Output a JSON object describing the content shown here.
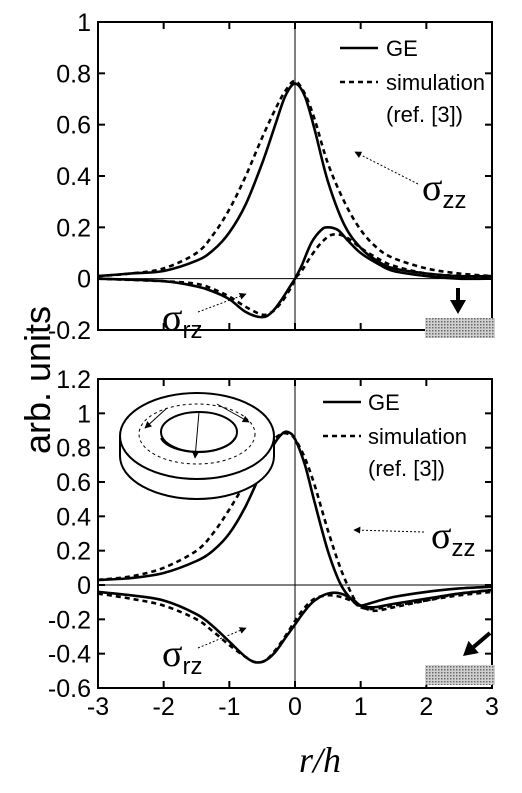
{
  "chart_data": [
    {
      "type": "line",
      "xlabel": "r/h",
      "ylabel": "arb.  units",
      "xlim": [
        -3,
        3
      ],
      "ylim": [
        -0.2,
        1
      ],
      "xticks": [
        "-3",
        "-2",
        "-1",
        "0",
        "1",
        "2",
        "3"
      ],
      "yticks": [
        "-0.2",
        "0",
        "0.2",
        "0.4",
        "0.6",
        "0.8",
        "1"
      ],
      "legend": {
        "placement": "top-right",
        "entries": [
          "GE",
          "simulation",
          "(ref. [3])"
        ]
      },
      "labels": {
        "szz": "σ",
        "szz_sub": "zz",
        "srz": "σ",
        "srz_sub": "rz"
      },
      "series": [
        {
          "name": "GE",
          "component": "zz",
          "style": "solid",
          "x": [
            -3,
            -2.5,
            -2,
            -1.5,
            -1.25,
            -1,
            -0.75,
            -0.5,
            -0.3,
            -0.15,
            0,
            0.15,
            0.3,
            0.5,
            0.75,
            1,
            1.25,
            1.5,
            2,
            2.5,
            3
          ],
          "y": [
            0.01,
            0.02,
            0.03,
            0.07,
            0.11,
            0.18,
            0.29,
            0.45,
            0.6,
            0.71,
            0.76,
            0.71,
            0.58,
            0.38,
            0.21,
            0.12,
            0.07,
            0.04,
            0.02,
            0.01,
            0.01
          ]
        },
        {
          "name": "simulation",
          "component": "zz",
          "style": "dashed",
          "x": [
            -3,
            -2.5,
            -2,
            -1.5,
            -1.25,
            -1,
            -0.75,
            -0.5,
            -0.3,
            -0.15,
            0,
            0.15,
            0.3,
            0.5,
            0.75,
            1,
            1.25,
            1.5,
            2,
            2.5,
            3
          ],
          "y": [
            0.01,
            0.02,
            0.04,
            0.1,
            0.17,
            0.27,
            0.4,
            0.55,
            0.66,
            0.73,
            0.77,
            0.72,
            0.62,
            0.45,
            0.3,
            0.19,
            0.12,
            0.08,
            0.04,
            0.02,
            0.01
          ]
        },
        {
          "name": "GE",
          "component": "rz",
          "style": "solid",
          "x": [
            -3,
            -2,
            -1.5,
            -1.25,
            -1,
            -0.75,
            -0.5,
            -0.35,
            -0.2,
            -0.05,
            0,
            0.1,
            0.25,
            0.4,
            0.5,
            0.65,
            0.8,
            1,
            1.25,
            1.5,
            2,
            2.5,
            3
          ],
          "y": [
            0,
            -0.01,
            -0.03,
            -0.05,
            -0.08,
            -0.13,
            -0.15,
            -0.13,
            -0.08,
            -0.02,
            0,
            0.05,
            0.14,
            0.19,
            0.2,
            0.19,
            0.15,
            0.1,
            0.06,
            0.03,
            0.01,
            0,
            0
          ]
        },
        {
          "name": "simulation",
          "component": "rz",
          "style": "dashed",
          "x": [
            -3,
            -2,
            -1.5,
            -1.25,
            -1,
            -0.75,
            -0.5,
            -0.35,
            -0.2,
            -0.05,
            0,
            0.1,
            0.25,
            0.4,
            0.55,
            0.7,
            0.85,
            1,
            1.25,
            1.5,
            2,
            2.5,
            3
          ],
          "y": [
            0,
            -0.01,
            -0.02,
            -0.04,
            -0.07,
            -0.11,
            -0.14,
            -0.13,
            -0.09,
            -0.03,
            0,
            0.03,
            0.09,
            0.14,
            0.17,
            0.17,
            0.15,
            0.12,
            0.08,
            0.05,
            0.02,
            0.01,
            0
          ]
        }
      ]
    },
    {
      "type": "line",
      "xlabel": "r/h",
      "ylabel": "arb.  units",
      "xlim": [
        -3,
        3
      ],
      "ylim": [
        -0.6,
        1.2
      ],
      "xticks": [
        "-3",
        "-2",
        "-1",
        "0",
        "1",
        "2",
        "3"
      ],
      "yticks": [
        "-0.6",
        "-0.4",
        "-0.2",
        "0",
        "0.2",
        "0.4",
        "0.6",
        "0.8",
        "1",
        "1.2"
      ],
      "legend": {
        "placement": "top-right",
        "entries": [
          "GE",
          "simulation",
          "(ref. [3])"
        ]
      },
      "labels": {
        "szz": "σ",
        "szz_sub": "zz",
        "srz": "σ",
        "srz_sub": "rz"
      },
      "series": [
        {
          "name": "GE",
          "component": "zz",
          "style": "solid",
          "x": [
            -3,
            -2.5,
            -2,
            -1.5,
            -1.25,
            -1,
            -0.75,
            -0.5,
            -0.35,
            -0.2,
            -0.1,
            0,
            0.15,
            0.3,
            0.5,
            0.7,
            0.9,
            1,
            1.2,
            1.5,
            2,
            2.5,
            3
          ],
          "y": [
            0.03,
            0.04,
            0.07,
            0.14,
            0.2,
            0.3,
            0.46,
            0.67,
            0.8,
            0.88,
            0.89,
            0.85,
            0.7,
            0.48,
            0.2,
            0.0,
            -0.1,
            -0.12,
            -0.1,
            -0.07,
            -0.04,
            -0.02,
            -0.01
          ]
        },
        {
          "name": "simulation",
          "component": "zz",
          "style": "dashed",
          "x": [
            -3,
            -2.5,
            -2,
            -1.5,
            -1.25,
            -1,
            -0.75,
            -0.5,
            -0.35,
            -0.2,
            -0.1,
            0,
            0.15,
            0.3,
            0.5,
            0.7,
            0.9,
            1,
            1.2,
            1.5,
            2,
            2.5,
            3
          ],
          "y": [
            0.03,
            0.05,
            0.1,
            0.2,
            0.3,
            0.44,
            0.6,
            0.76,
            0.84,
            0.88,
            0.88,
            0.85,
            0.74,
            0.58,
            0.32,
            0.09,
            -0.08,
            -0.12,
            -0.15,
            -0.13,
            -0.09,
            -0.05,
            -0.03
          ]
        },
        {
          "name": "GE",
          "component": "rz",
          "style": "solid",
          "x": [
            -3,
            -2.5,
            -2,
            -1.5,
            -1.25,
            -1,
            -0.75,
            -0.6,
            -0.45,
            -0.3,
            -0.15,
            0,
            0.15,
            0.3,
            0.5,
            0.7,
            0.9,
            1,
            1.2,
            1.5,
            2,
            2.5,
            3
          ],
          "y": [
            -0.04,
            -0.06,
            -0.09,
            -0.17,
            -0.24,
            -0.33,
            -0.42,
            -0.45,
            -0.44,
            -0.39,
            -0.31,
            -0.23,
            -0.15,
            -0.09,
            -0.05,
            -0.05,
            -0.09,
            -0.12,
            -0.13,
            -0.11,
            -0.08,
            -0.05,
            -0.03
          ]
        },
        {
          "name": "simulation",
          "component": "rz",
          "style": "dashed",
          "x": [
            -3,
            -2.5,
            -2,
            -1.5,
            -1.25,
            -1,
            -0.75,
            -0.6,
            -0.45,
            -0.3,
            -0.15,
            0,
            0.15,
            0.3,
            0.5,
            0.7,
            0.9,
            1,
            1.2,
            1.5,
            2,
            2.5,
            3
          ],
          "y": [
            -0.05,
            -0.08,
            -0.12,
            -0.2,
            -0.27,
            -0.35,
            -0.42,
            -0.45,
            -0.44,
            -0.38,
            -0.3,
            -0.21,
            -0.13,
            -0.08,
            -0.06,
            -0.07,
            -0.1,
            -0.13,
            -0.14,
            -0.12,
            -0.09,
            -0.06,
            -0.04
          ]
        }
      ]
    }
  ]
}
